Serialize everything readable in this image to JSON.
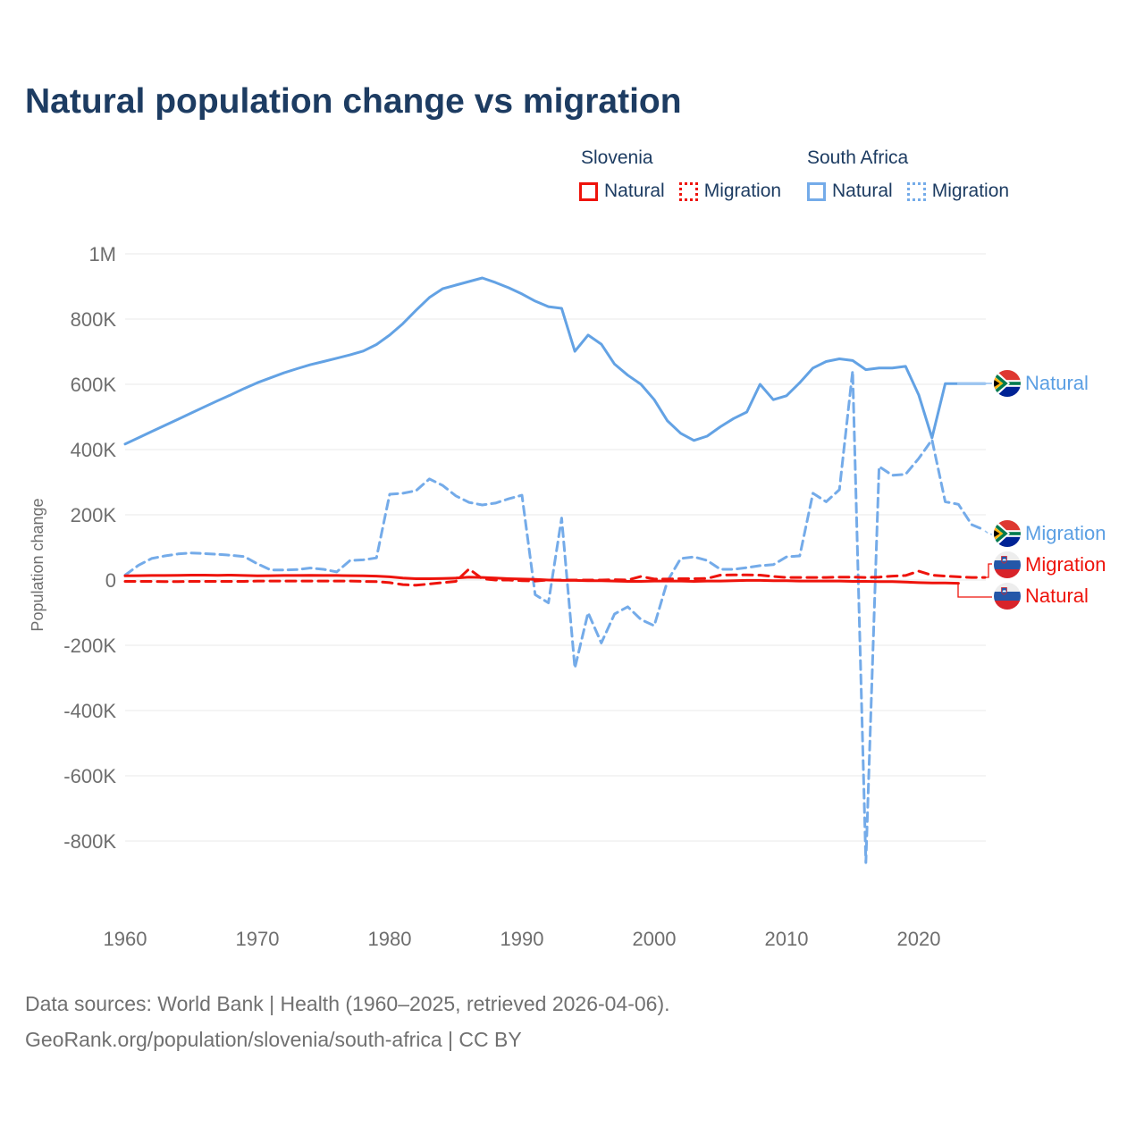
{
  "header": {
    "title": "Natural population change vs migration"
  },
  "legend": {
    "groups": [
      {
        "label": "Slovenia",
        "color": "#ee130b",
        "items": [
          {
            "label": "Natural",
            "line": "solid"
          },
          {
            "label": "Migration",
            "line": "dotted"
          }
        ]
      },
      {
        "label": "South Africa",
        "color": "#74abe9",
        "items": [
          {
            "label": "Natural",
            "line": "solid"
          },
          {
            "label": "Migration",
            "line": "dotted"
          }
        ]
      }
    ]
  },
  "footer": {
    "line1": "Data sources: World Bank | Health (1960–2025, retrieved 2026-04-06).",
    "line2": "GeoRank.org/population/slovenia/south-africa | CC BY"
  },
  "chart_data": {
    "type": "line",
    "title": "Natural population change vs migration",
    "ylabel": "Population change",
    "xlabel": "",
    "units": "people per year (values stored in thousands)",
    "x_range": [
      1960,
      2025
    ],
    "ylim_thousands": [
      -900,
      1000
    ],
    "grid": "horizontal",
    "grid_color": "#e9e9e9",
    "axis_text_color": "#6e6e6e",
    "yticks": [
      {
        "value": 1000,
        "label": "1M"
      },
      {
        "value": 800,
        "label": "800K"
      },
      {
        "value": 600,
        "label": "600K"
      },
      {
        "value": 400,
        "label": "400K"
      },
      {
        "value": 200,
        "label": "200K"
      },
      {
        "value": 0,
        "label": "0"
      },
      {
        "value": -200,
        "label": "-200K"
      },
      {
        "value": -400,
        "label": "-400K"
      },
      {
        "value": -600,
        "label": "-600K"
      },
      {
        "value": -800,
        "label": "-800K"
      }
    ],
    "xticks": [
      {
        "value": 1960,
        "label": "1960"
      },
      {
        "value": 1970,
        "label": "1970"
      },
      {
        "value": 1980,
        "label": "1980"
      },
      {
        "value": 1990,
        "label": "1990"
      },
      {
        "value": 2000,
        "label": "2000"
      },
      {
        "value": 2010,
        "label": "2010"
      },
      {
        "value": 2020,
        "label": "2020"
      }
    ],
    "series": [
      {
        "id": "za-natural",
        "country": "South Africa",
        "metric": "Natural",
        "color": "#63a2e4",
        "style": "solid",
        "width": 3,
        "start_year": 1960,
        "values_thousands": [
          417,
          436,
          455,
          474,
          493,
          512,
          531,
          550,
          568,
          587,
          605,
          620,
          635,
          648,
          660,
          670,
          680,
          690,
          702,
          722,
          751,
          786,
          827,
          866,
          893,
          904,
          915,
          926,
          912,
          896,
          877,
          855,
          838,
          833,
          701,
          751,
          723,
          662,
          628,
          600,
          553,
          488,
          450,
          428,
          441,
          470,
          495,
          515,
          600,
          553,
          565,
          605,
          650,
          670,
          678,
          673,
          645,
          650,
          650,
          655,
          567,
          436,
          602,
          602,
          602,
          602
        ]
      },
      {
        "id": "za-natural-recent",
        "country": "South Africa",
        "metric": "Natural (latest segment, lighter)",
        "color": "#9cc5f0",
        "style": "solid",
        "width": 3,
        "start_year": 2023,
        "values_thousands": [
          602,
          602,
          602
        ]
      },
      {
        "id": "za-migration",
        "country": "South Africa",
        "metric": "Migration",
        "color": "#74abe9",
        "style": "dashed",
        "dash": "10 6",
        "width": 3,
        "start_year": 1960,
        "values_thousands": [
          15,
          45,
          66,
          74,
          80,
          83,
          81,
          79,
          76,
          72,
          50,
          31,
          31,
          32,
          37,
          33,
          25,
          60,
          62,
          68,
          263,
          266,
          274,
          310,
          290,
          258,
          238,
          230,
          236,
          249,
          260,
          -45,
          -70,
          190,
          -270,
          -100,
          -193,
          -104,
          -82,
          -121,
          -140,
          -3,
          66,
          71,
          60,
          33,
          33,
          38,
          44,
          47,
          71,
          74,
          266,
          240,
          277,
          641,
          -866,
          348,
          321,
          324,
          373,
          430,
          240,
          232,
          170,
          153
        ]
      },
      {
        "id": "si-natural",
        "country": "Slovenia",
        "metric": "Natural",
        "color": "#ee130b",
        "style": "solid",
        "width": 3,
        "start_year": 1960,
        "values_thousands": [
          13,
          13.5,
          14,
          14,
          14.5,
          15,
          15,
          14.5,
          15,
          14,
          13,
          13.5,
          14,
          14,
          14.5,
          14,
          14,
          13.5,
          13,
          12,
          10,
          6,
          4,
          4,
          5,
          6,
          9,
          8,
          6,
          4,
          3,
          2,
          0,
          -1,
          -1,
          -2,
          -2,
          -3,
          -4,
          -4,
          -3,
          -3,
          -3,
          -4,
          -3,
          -3,
          -2,
          -1,
          -1,
          -2,
          -2,
          -3,
          -3,
          -3,
          -3,
          -4,
          -4,
          -5,
          -5,
          -6,
          -8,
          -9,
          -9,
          -10
        ]
      },
      {
        "id": "si-migration",
        "country": "Slovenia",
        "metric": "Migration",
        "color": "#ee130b",
        "style": "dashed",
        "dash": "11 7",
        "width": 3,
        "start_year": 1960,
        "values_thousands": [
          -4,
          -4,
          -4,
          -5,
          -5,
          -4,
          -4,
          -4,
          -4,
          -4,
          -3,
          -3,
          -3,
          -3,
          -3,
          -3,
          -3,
          -3,
          -4,
          -5,
          -8,
          -14,
          -16,
          -12,
          -8,
          -4,
          34,
          4,
          0,
          0,
          -2,
          -3,
          0,
          0,
          0,
          0,
          0,
          1,
          0,
          11,
          3,
          3,
          4,
          4,
          5,
          15,
          16,
          16,
          15,
          11,
          8,
          8,
          8,
          8,
          9,
          9,
          8,
          9,
          12,
          14,
          27,
          15,
          12,
          10,
          8,
          8
        ]
      }
    ],
    "end_labels": [
      {
        "id": "za-natural",
        "label": "Natural",
        "country": "South Africa",
        "flag": "za",
        "end_value_thousands": 602
      },
      {
        "id": "za-migration",
        "label": "Migration",
        "country": "South Africa",
        "flag": "za",
        "end_value_thousands": 153
      },
      {
        "id": "si-migration",
        "label": "Migration",
        "country": "Slovenia",
        "flag": "si",
        "end_value_thousands": 8
      },
      {
        "id": "si-natural",
        "label": "Natural",
        "country": "Slovenia",
        "flag": "si",
        "end_value_thousands": -10
      }
    ],
    "legend_position": "top-right"
  }
}
